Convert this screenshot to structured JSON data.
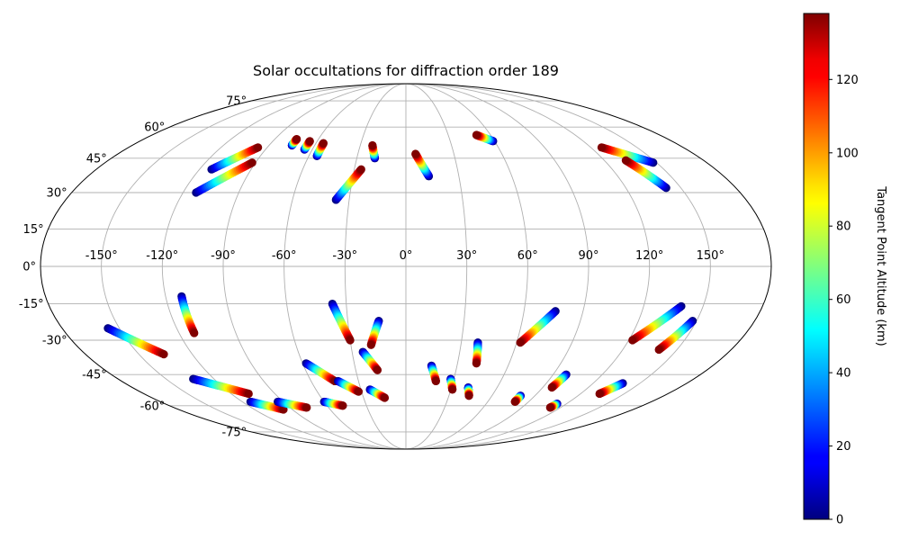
{
  "chart_data": {
    "type": "scatter",
    "projection": "mollweide",
    "title": "Solar occultations for diffraction order 189",
    "xlabel": "",
    "ylabel": "",
    "grid": true,
    "xlim": [
      -180,
      180
    ],
    "ylim": [
      -90,
      90
    ],
    "x_ticks": [
      -150,
      -120,
      -90,
      -60,
      -30,
      0,
      30,
      60,
      90,
      120,
      150
    ],
    "x_tick_labels": [
      "-150°",
      "-120°",
      "-90°",
      "-60°",
      "-30°",
      "0°",
      "30°",
      "60°",
      "90°",
      "120°",
      "150°"
    ],
    "y_ticks": [
      -75,
      -60,
      -45,
      -30,
      -15,
      0,
      15,
      30,
      45,
      60,
      75
    ],
    "y_tick_labels": [
      "-75°",
      "-60°",
      "-45°",
      "-30°",
      "-15°",
      "0°",
      "15°",
      "30°",
      "45°",
      "60°",
      "75°"
    ],
    "colorbar": {
      "label": "Tangent Point Altitude (km)",
      "colormap": "jet",
      "range": [
        0,
        138
      ],
      "ticks": [
        0,
        20,
        40,
        60,
        80,
        100,
        120
      ],
      "tick_labels": [
        "0",
        "20",
        "40",
        "60",
        "80",
        "100",
        "120"
      ]
    },
    "tracks": [
      {
        "lon0": -113,
        "lat0": 40,
        "alt0": 0,
        "lon1": -96,
        "lat1": 50,
        "alt1": 138
      },
      {
        "lon0": -113,
        "lat0": 30,
        "alt0": 0,
        "lon1": -92,
        "lat1": 43,
        "alt1": 138
      },
      {
        "lon0": -75,
        "lat0": 51,
        "alt0": 0,
        "lon1": -75,
        "lat1": 54,
        "alt1": 138
      },
      {
        "lon0": -65,
        "lat0": 49,
        "alt0": 0,
        "lon1": -65,
        "lat1": 53,
        "alt1": 138
      },
      {
        "lon0": -55,
        "lat0": 46,
        "alt0": 0,
        "lon1": -55,
        "lat1": 52,
        "alt1": 138
      },
      {
        "lon0": -37,
        "lat0": 27,
        "alt0": 0,
        "lon1": -26,
        "lat1": 40,
        "alt1": 138
      },
      {
        "lon0": -19,
        "lat0": 45,
        "alt0": 0,
        "lon1": -22,
        "lat1": 51,
        "alt1": 138
      },
      {
        "lon0": 13,
        "lat0": 37,
        "alt0": 0,
        "lon1": 6,
        "lat1": 47,
        "alt1": 138
      },
      {
        "lon0": 59,
        "lat0": 53,
        "alt0": 0,
        "lon1": 50,
        "lat1": 56,
        "alt1": 138
      },
      {
        "lon0": 148,
        "lat0": 43,
        "alt0": 0,
        "lon1": 127,
        "lat1": 50,
        "alt1": 138
      },
      {
        "lon0": 142,
        "lat0": 32,
        "alt0": 0,
        "lon1": 133,
        "lat1": 44,
        "alt1": 138
      },
      {
        "lon0": -112,
        "lat0": -12,
        "alt0": 0,
        "lon1": -112,
        "lat1": -27,
        "alt1": 138
      },
      {
        "lon0": -156,
        "lat0": -25,
        "alt0": 0,
        "lon1": -136,
        "lat1": -36,
        "alt1": 138
      },
      {
        "lon0": -133,
        "lat0": -47,
        "alt0": 0,
        "lon1": -108,
        "lat1": -54,
        "alt1": 138
      },
      {
        "lon0": -114,
        "lat0": -58,
        "alt0": 0,
        "lon1": -97,
        "lat1": -62,
        "alt1": 138
      },
      {
        "lon0": -94,
        "lat0": -58,
        "alt0": 0,
        "lon1": -77,
        "lat1": -61,
        "alt1": 138
      },
      {
        "lon0": -58,
        "lat0": -40,
        "alt0": 0,
        "lon1": -45,
        "lat1": -48,
        "alt1": 138
      },
      {
        "lon0": -37,
        "lat0": -15,
        "alt0": 0,
        "lon1": -30,
        "lat1": -30,
        "alt1": 138
      },
      {
        "lon0": -14,
        "lat0": -22,
        "alt0": 0,
        "lon1": -19,
        "lat1": -32,
        "alt1": 138
      },
      {
        "lon0": -24,
        "lat0": -35,
        "alt0": 0,
        "lon1": -17,
        "lat1": -43,
        "alt1": 138
      },
      {
        "lon0": -43,
        "lat0": -48,
        "alt0": 0,
        "lon1": -32,
        "lat1": -53,
        "alt1": 138
      },
      {
        "lon0": -24,
        "lat0": -52,
        "alt0": 0,
        "lon1": -15,
        "lat1": -56,
        "alt1": 138
      },
      {
        "lon0": -60,
        "lat0": -58,
        "alt0": 0,
        "lon1": -48,
        "lat1": -60,
        "alt1": 138
      },
      {
        "lon0": 15,
        "lat0": -41,
        "alt0": 0,
        "lon1": 19,
        "lat1": -48,
        "alt1": 138
      },
      {
        "lon0": 28,
        "lat0": -47,
        "alt0": 0,
        "lon1": 31,
        "lat1": -52,
        "alt1": 138
      },
      {
        "lon0": 39,
        "lat0": -31,
        "alt0": 0,
        "lon1": 41,
        "lat1": -40,
        "alt1": 138
      },
      {
        "lon0": 41,
        "lat0": -51,
        "alt0": 0,
        "lon1": 44,
        "lat1": -55,
        "alt1": 138
      },
      {
        "lon0": 76,
        "lat0": -18,
        "alt0": 0,
        "lon1": 62,
        "lat1": -31,
        "alt1": 138
      },
      {
        "lon0": 80,
        "lat0": -55,
        "alt0": 0,
        "lon1": 80,
        "lat1": -58,
        "alt1": 138
      },
      {
        "lon0": 98,
        "lat0": -45,
        "alt0": 0,
        "lon1": 96,
        "lat1": -51,
        "alt1": 138
      },
      {
        "lon0": 113,
        "lat0": -59,
        "alt0": 0,
        "lon1": 112,
        "lat1": -61,
        "alt1": 138
      },
      {
        "lon0": 139,
        "lat0": -49,
        "alt0": 0,
        "lon1": 133,
        "lat1": -54,
        "alt1": 138
      },
      {
        "lon0": 139,
        "lat0": -16,
        "alt0": 0,
        "lon1": 122,
        "lat1": -30,
        "alt1": 138
      },
      {
        "lon0": 148,
        "lat0": -22,
        "alt0": 0,
        "lon1": 140,
        "lat1": -34,
        "alt1": 138
      }
    ]
  }
}
